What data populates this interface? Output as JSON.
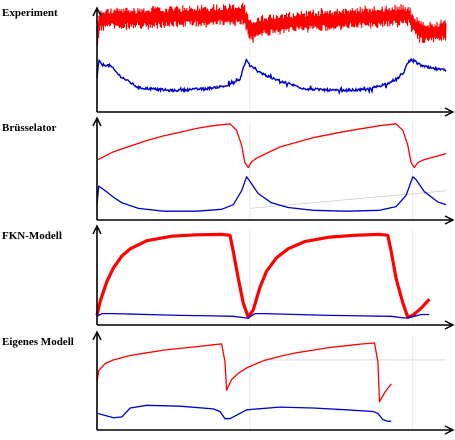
{
  "chart_data": [
    {
      "type": "line",
      "title": "Experiment",
      "xlim": [
        0,
        2.1
      ],
      "ylim": [
        0,
        1
      ],
      "axis_color": "#000000",
      "series": [
        {
          "color": "#ff0000",
          "style": "noisy-band",
          "x": [
            0,
            0.02,
            0.1,
            0.3,
            0.5,
            0.7,
            0.88,
            0.9,
            0.93,
            1.0,
            1.3,
            1.6,
            1.88,
            1.9,
            1.94,
            2.0,
            2.1
          ],
          "y": [
            0.73,
            0.9,
            0.91,
            0.92,
            0.93,
            0.945,
            0.96,
            0.88,
            0.77,
            0.84,
            0.89,
            0.92,
            0.945,
            0.86,
            0.77,
            0.76,
            0.79
          ]
        },
        {
          "color": "#0000cc",
          "style": "noisy-line",
          "x": [
            0,
            0.01,
            0.03,
            0.08,
            0.14,
            0.25,
            0.45,
            0.65,
            0.78,
            0.86,
            0.88,
            0.9,
            0.92,
            0.96,
            1.05,
            1.25,
            1.45,
            1.62,
            1.78,
            1.84,
            1.87,
            1.9,
            1.93,
            1.97,
            2.02,
            2.1
          ],
          "y": [
            0.28,
            0.47,
            0.43,
            0.42,
            0.31,
            0.19,
            0.16,
            0.18,
            0.21,
            0.27,
            0.4,
            0.48,
            0.42,
            0.37,
            0.29,
            0.18,
            0.16,
            0.17,
            0.25,
            0.33,
            0.45,
            0.49,
            0.44,
            0.41,
            0.39,
            0.37
          ]
        }
      ]
    },
    {
      "type": "line",
      "title": "Brüsselator",
      "xlim": [
        0,
        2.1
      ],
      "ylim": [
        0,
        1
      ],
      "gridlines": [
        {
          "x": [
            0.92,
            2.1
          ],
          "y": [
            0.06,
            0.25
          ]
        }
      ],
      "series": [
        {
          "color": "#ff0000",
          "x": [
            0,
            0.1,
            0.2,
            0.3,
            0.4,
            0.5,
            0.6,
            0.7,
            0.8,
            0.84,
            0.87,
            0.89,
            0.91,
            0.93,
            0.96,
            1.1,
            1.3,
            1.5,
            1.7,
            1.8,
            1.84,
            1.87,
            1.89,
            1.91,
            1.93,
            1.96,
            2.1
          ],
          "y": [
            0.58,
            0.67,
            0.73,
            0.79,
            0.84,
            0.88,
            0.92,
            0.95,
            0.97,
            0.9,
            0.74,
            0.55,
            0.5,
            0.56,
            0.6,
            0.72,
            0.82,
            0.89,
            0.95,
            0.97,
            0.9,
            0.74,
            0.55,
            0.5,
            0.55,
            0.58,
            0.65
          ]
        },
        {
          "color": "#0000cc",
          "x": [
            0,
            0.01,
            0.05,
            0.1,
            0.15,
            0.25,
            0.4,
            0.6,
            0.75,
            0.82,
            0.87,
            0.9,
            0.92,
            0.97,
            1.05,
            1.15,
            1.3,
            1.5,
            1.7,
            1.8,
            1.86,
            1.9,
            1.92,
            1.97,
            2.05,
            2.1
          ],
          "y": [
            0.1,
            0.3,
            0.25,
            0.18,
            0.12,
            0.06,
            0.03,
            0.03,
            0.05,
            0.1,
            0.25,
            0.4,
            0.35,
            0.22,
            0.12,
            0.07,
            0.04,
            0.03,
            0.04,
            0.08,
            0.2,
            0.4,
            0.37,
            0.24,
            0.13,
            0.1
          ]
        }
      ]
    },
    {
      "type": "line",
      "title": "FKN-Modell",
      "xlim": [
        0,
        2.1
      ],
      "ylim": [
        0,
        1
      ],
      "series": [
        {
          "color": "#ff0000",
          "style": "thick",
          "x": [
            0,
            0.02,
            0.06,
            0.1,
            0.15,
            0.2,
            0.3,
            0.45,
            0.6,
            0.75,
            0.8,
            0.82,
            0.85,
            0.88,
            0.91,
            0.94,
            0.98,
            1.02,
            1.08,
            1.15,
            1.25,
            1.4,
            1.55,
            1.7,
            1.75,
            1.77,
            1.8,
            1.84,
            1.87,
            1.9,
            1.95,
            2.0
          ],
          "y": [
            0.04,
            0.2,
            0.42,
            0.57,
            0.7,
            0.78,
            0.87,
            0.92,
            0.935,
            0.94,
            0.93,
            0.75,
            0.45,
            0.18,
            0.02,
            0.1,
            0.35,
            0.53,
            0.68,
            0.78,
            0.86,
            0.91,
            0.93,
            0.94,
            0.93,
            0.75,
            0.45,
            0.18,
            0.02,
            0.04,
            0.12,
            0.22
          ]
        },
        {
          "color": "#0000cc",
          "x": [
            0,
            0.03,
            0.1,
            0.3,
            0.5,
            0.7,
            0.82,
            0.88,
            0.91,
            0.95,
            1.0,
            1.2,
            1.4,
            1.6,
            1.77,
            1.83,
            1.87,
            1.91,
            1.95,
            2.0
          ],
          "y": [
            0.03,
            0.06,
            0.06,
            0.05,
            0.04,
            0.035,
            0.03,
            0.015,
            0.01,
            0.06,
            0.06,
            0.05,
            0.04,
            0.035,
            0.03,
            0.015,
            0.01,
            0.03,
            0.05,
            0.05
          ]
        }
      ]
    },
    {
      "type": "line",
      "title": "Eigenes Modell",
      "xlim": [
        0,
        2.1
      ],
      "ylim": [
        0,
        1
      ],
      "gridlines": [
        {
          "x": [
            1.0,
            2.1
          ],
          "y": [
            0.72,
            0.72
          ]
        }
      ],
      "series": [
        {
          "color": "#ff0000",
          "x": [
            0,
            0.01,
            0.05,
            0.1,
            0.2,
            0.3,
            0.4,
            0.5,
            0.6,
            0.7,
            0.75,
            0.77,
            0.78,
            0.81,
            0.85,
            0.9,
            1.0,
            1.1,
            1.2,
            1.3,
            1.4,
            1.5,
            1.6,
            1.67,
            1.69,
            1.7,
            1.73,
            1.77
          ],
          "y": [
            0.47,
            0.6,
            0.68,
            0.72,
            0.77,
            0.8,
            0.83,
            0.85,
            0.87,
            0.89,
            0.9,
            0.7,
            0.38,
            0.5,
            0.57,
            0.63,
            0.71,
            0.76,
            0.8,
            0.83,
            0.86,
            0.88,
            0.9,
            0.91,
            0.7,
            0.25,
            0.35,
            0.45
          ]
        },
        {
          "color": "#0000cc",
          "x": [
            0,
            0.1,
            0.15,
            0.2,
            0.3,
            0.5,
            0.7,
            0.74,
            0.77,
            0.8,
            0.9,
            1.1,
            1.3,
            1.5,
            1.66,
            1.69,
            1.72,
            1.75,
            1.77
          ],
          "y": [
            0.12,
            0.07,
            0.08,
            0.18,
            0.21,
            0.2,
            0.17,
            0.14,
            0.06,
            0.06,
            0.16,
            0.19,
            0.18,
            0.16,
            0.14,
            0.12,
            0.05,
            0.03,
            0.03
          ]
        }
      ]
    }
  ]
}
